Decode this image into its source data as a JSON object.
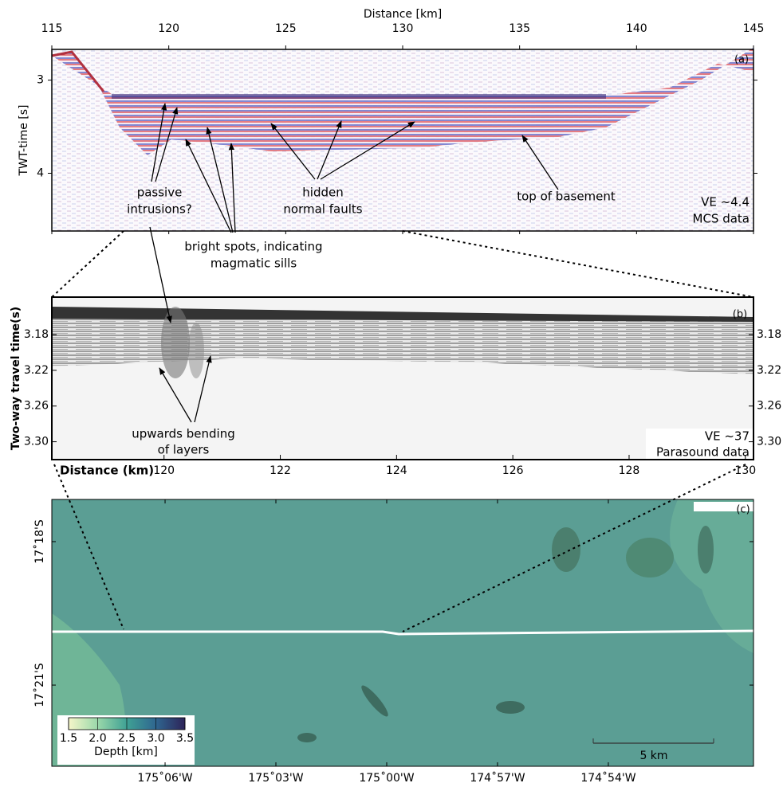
{
  "chart_data": [
    {
      "type": "seismic",
      "panel_label": "(a)",
      "xlabel": "Distance [km]",
      "ylabel": "TWT-time [s]",
      "xlim": [
        115,
        145
      ],
      "xticks": [
        115,
        120,
        125,
        130,
        135,
        140,
        145
      ],
      "ylim": [
        4.62,
        2.67
      ],
      "yticks": [
        3,
        4
      ],
      "annotations": [
        {
          "lines": [
            "passive",
            "intrusions?"
          ]
        },
        {
          "lines": [
            "hidden",
            "normal faults"
          ]
        },
        {
          "lines": [
            "top of basement"
          ]
        },
        {
          "lines": [
            "VE ~4.4",
            "MCS data"
          ]
        },
        {
          "lines": [
            "bright spots, indicating",
            "magmatic sills"
          ]
        }
      ]
    },
    {
      "type": "parasound",
      "panel_label": "(b)",
      "xlabel": "Distance (km)",
      "ylabel": "Two-way travel time(s)",
      "xlim": [
        118.07,
        130.14
      ],
      "xticks": [
        120,
        122,
        124,
        126,
        128,
        130
      ],
      "ylim": [
        3.32,
        3.138
      ],
      "yticks": [
        3.18,
        3.22,
        3.26,
        {
          "value": 3.3,
          "label": "3.30"
        }
      ],
      "annotations": [
        {
          "lines": [
            "upwards bending",
            "of layers"
          ]
        },
        {
          "lines": [
            "VE ~37",
            "Parasound data"
          ]
        }
      ]
    },
    {
      "type": "map",
      "panel_label": "(c)",
      "xlim": [
        -175.1511,
        -174.8345
      ],
      "xticks": [
        {
          "value": -175.1,
          "label": "175˚06'W"
        },
        {
          "value": -175.05,
          "label": "175˚03'W"
        },
        {
          "value": -175.0,
          "label": "175˚00'W"
        },
        {
          "value": -174.95,
          "label": "174˚57'W"
        },
        {
          "value": -174.9,
          "label": "174˚54'W"
        }
      ],
      "ylim": [
        -17.3783,
        -17.2853
      ],
      "yticks": [
        {
          "value": -17.3,
          "label": "17˚18'S"
        },
        {
          "value": -17.35,
          "label": "17˚21'S"
        }
      ],
      "colorbar": {
        "label": "Depth [km]",
        "lim": [
          1.5,
          3.5
        ],
        "ticks": [
          1.5,
          {
            "value": 2.0,
            "label": "2.0"
          },
          2.5,
          {
            "value": 3.0,
            "label": "3.0"
          },
          3.5
        ],
        "colors": [
          "#f6f6c9",
          "#9ad8aa",
          "#3fa194",
          "#2f6690",
          "#2d2358"
        ]
      },
      "scale_bar": "5 km"
    }
  ]
}
